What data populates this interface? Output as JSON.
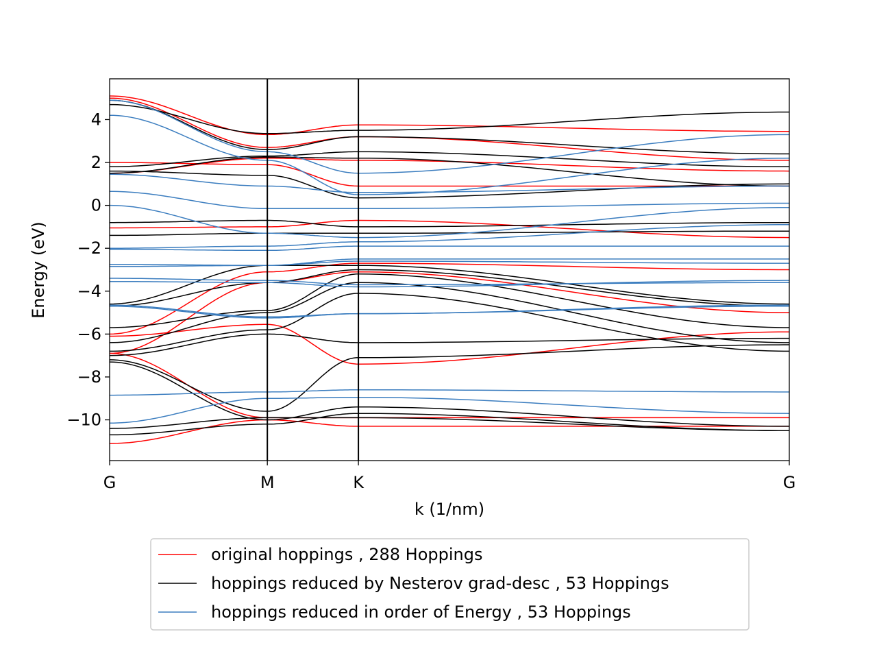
{
  "chart_data": {
    "type": "line",
    "xlabel": "k (1/nm)",
    "ylabel": "Energy (eV)",
    "ylim": [
      -11.9,
      5.9
    ],
    "x_path": [
      0,
      1.732,
      2.732,
      7.464
    ],
    "xticks": [
      {
        "x": 0,
        "label": "G"
      },
      {
        "x": 1.732,
        "label": "M"
      },
      {
        "x": 2.732,
        "label": "K"
      },
      {
        "x": 7.464,
        "label": "G"
      }
    ],
    "yticks": [
      {
        "y": 4,
        "label": "4"
      },
      {
        "y": 2,
        "label": "2"
      },
      {
        "y": 0,
        "label": "0"
      },
      {
        "y": -2,
        "label": "−2"
      },
      {
        "y": -4,
        "label": "−4"
      },
      {
        "y": -6,
        "label": "−6"
      },
      {
        "y": -8,
        "label": "−8"
      },
      {
        "y": -10,
        "label": "−10"
      }
    ],
    "vlines": [
      1.732,
      2.732
    ],
    "legend_position": "below plot, centered",
    "series": [
      {
        "name": "original hoppings , 288 Hoppings",
        "color": "#ff0000",
        "bands": [
          [
            5.1,
            3.3,
            3.75,
            3.45,
            5.1
          ],
          [
            5.0,
            2.7,
            3.2,
            2.1,
            5.0
          ],
          [
            2.0,
            1.9,
            0.9,
            0.9,
            2.0
          ],
          [
            1.5,
            2.2,
            2.1,
            1.6,
            1.9
          ],
          [
            -1.05,
            -1.0,
            -0.7,
            -1.5,
            -1.05
          ],
          [
            -6.0,
            -3.1,
            -2.7,
            -3.0,
            -6.0
          ],
          [
            -6.9,
            -3.6,
            -3.1,
            -5.0,
            -6.9
          ],
          [
            -6.1,
            -5.55,
            -7.4,
            -5.9,
            -6.1
          ],
          [
            -6.9,
            -9.9,
            -9.9,
            -9.9,
            -6.9
          ],
          [
            -11.1,
            -10.0,
            -10.3,
            -10.3,
            -11.1
          ]
        ]
      },
      {
        "name": "hoppings reduced by Nesterov grad-desc , 53 Hoppings",
        "color": "#000000",
        "bands": [
          [
            4.7,
            3.35,
            3.5,
            4.35,
            4.7
          ],
          [
            4.9,
            2.6,
            3.2,
            2.4,
            4.9
          ],
          [
            1.8,
            2.3,
            2.5,
            1.8,
            1.8
          ],
          [
            1.6,
            1.4,
            0.35,
            1.0,
            1.6
          ],
          [
            1.5,
            2.25,
            2.2,
            0.9,
            1.5
          ],
          [
            -0.8,
            -0.7,
            -1.0,
            -0.8,
            -0.8
          ],
          [
            -1.4,
            -1.3,
            -1.3,
            -1.2,
            -1.4
          ],
          [
            -4.6,
            -2.8,
            -2.8,
            -4.6,
            -4.6
          ],
          [
            -4.7,
            -3.6,
            -3.0,
            -4.7,
            -4.7
          ],
          [
            -5.7,
            -4.9,
            -3.2,
            -5.7,
            -5.7
          ],
          [
            -6.4,
            -5.0,
            -3.6,
            -6.4,
            -6.4
          ],
          [
            -6.8,
            -5.8,
            -4.1,
            -6.8,
            -6.8
          ],
          [
            -7.0,
            -6.0,
            -6.4,
            -6.2,
            -7.0
          ],
          [
            -7.2,
            -9.6,
            -7.1,
            -6.5,
            -7.2
          ],
          [
            -7.3,
            -10.0,
            -9.4,
            -10.3,
            -7.3
          ],
          [
            -10.4,
            -9.9,
            -9.9,
            -10.5,
            -10.4
          ],
          [
            -10.7,
            -10.2,
            -9.7,
            -10.5,
            -10.7
          ]
        ]
      },
      {
        "name": "hoppings reduced in order of Energy , 53 Hoppings",
        "color": "#3b7dbf",
        "bands": [
          [
            4.9,
            2.5,
            1.5,
            3.3,
            4.9
          ],
          [
            4.2,
            2.1,
            0.5,
            2.2,
            4.2
          ],
          [
            1.45,
            0.9,
            0.6,
            0.9,
            1.45
          ],
          [
            0.65,
            -0.15,
            -0.15,
            0.1,
            0.65
          ],
          [
            0.0,
            -1.3,
            -1.5,
            -0.1,
            0.0
          ],
          [
            -2.0,
            -1.9,
            -1.7,
            -0.9,
            -2.0
          ],
          [
            -2.05,
            -2.1,
            -1.9,
            -1.9,
            -2.05
          ],
          [
            -2.75,
            -2.8,
            -2.5,
            -2.5,
            -2.75
          ],
          [
            -2.85,
            -2.8,
            -2.6,
            -2.7,
            -2.85
          ],
          [
            -3.4,
            -3.5,
            -3.7,
            -3.6,
            -3.4
          ],
          [
            -3.55,
            -3.6,
            -3.8,
            -3.5,
            -3.55
          ],
          [
            -4.65,
            -5.2,
            -5.05,
            -4.7,
            -4.65
          ],
          [
            -4.7,
            -5.25,
            -5.05,
            -4.65,
            -4.7
          ],
          [
            -8.85,
            -8.7,
            -8.6,
            -8.7,
            -8.85
          ],
          [
            -10.15,
            -9.0,
            -8.95,
            -9.7,
            -10.15
          ]
        ]
      }
    ]
  }
}
